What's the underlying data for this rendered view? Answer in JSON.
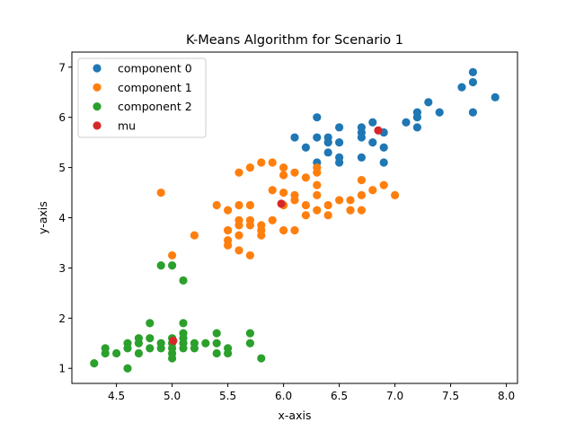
{
  "chart_data": {
    "type": "scatter",
    "title": "K-Means Algorithm for Scenario 1",
    "xlabel": "x-axis",
    "ylabel": "y-axis",
    "xlim": [
      4.1,
      8.1
    ],
    "ylim": [
      0.7,
      7.3
    ],
    "xticks": [
      4.5,
      5.0,
      5.5,
      6.0,
      6.5,
      7.0,
      7.5,
      8.0
    ],
    "yticks": [
      1,
      2,
      3,
      4,
      5,
      6,
      7
    ],
    "legend_position": "top-left",
    "grid": false,
    "series": [
      {
        "name": "component 0",
        "color": "#1f77b4",
        "points": [
          [
            6.1,
            5.6
          ],
          [
            6.2,
            5.4
          ],
          [
            6.3,
            5.6
          ],
          [
            6.3,
            6.0
          ],
          [
            6.3,
            5.1
          ],
          [
            6.4,
            5.6
          ],
          [
            6.4,
            5.5
          ],
          [
            6.4,
            5.3
          ],
          [
            6.5,
            5.8
          ],
          [
            6.5,
            5.5
          ],
          [
            6.5,
            5.2
          ],
          [
            6.5,
            5.1
          ],
          [
            6.7,
            5.8
          ],
          [
            6.7,
            5.7
          ],
          [
            6.7,
            5.6
          ],
          [
            6.7,
            5.2
          ],
          [
            6.8,
            5.9
          ],
          [
            6.8,
            5.5
          ],
          [
            6.9,
            5.7
          ],
          [
            6.9,
            5.4
          ],
          [
            6.9,
            5.1
          ],
          [
            7.1,
            5.9
          ],
          [
            7.2,
            6.1
          ],
          [
            7.2,
            6.0
          ],
          [
            7.2,
            5.8
          ],
          [
            7.3,
            6.3
          ],
          [
            7.4,
            6.1
          ],
          [
            7.6,
            6.6
          ],
          [
            7.7,
            6.9
          ],
          [
            7.7,
            6.7
          ],
          [
            7.7,
            6.1
          ],
          [
            7.9,
            6.4
          ]
        ]
      },
      {
        "name": "component 1",
        "color": "#ff7f0e",
        "points": [
          [
            4.9,
            4.5
          ],
          [
            5.0,
            3.25
          ],
          [
            5.2,
            3.65
          ],
          [
            5.4,
            4.25
          ],
          [
            5.5,
            4.15
          ],
          [
            5.5,
            3.75
          ],
          [
            5.5,
            3.55
          ],
          [
            5.5,
            3.45
          ],
          [
            5.6,
            4.9
          ],
          [
            5.6,
            4.25
          ],
          [
            5.6,
            3.95
          ],
          [
            5.6,
            3.85
          ],
          [
            5.6,
            3.65
          ],
          [
            5.6,
            3.35
          ],
          [
            5.7,
            5.0
          ],
          [
            5.7,
            4.25
          ],
          [
            5.7,
            3.95
          ],
          [
            5.7,
            3.85
          ],
          [
            5.7,
            3.25
          ],
          [
            5.8,
            5.1
          ],
          [
            5.8,
            3.85
          ],
          [
            5.8,
            3.75
          ],
          [
            5.8,
            3.65
          ],
          [
            5.9,
            5.1
          ],
          [
            5.9,
            4.55
          ],
          [
            5.9,
            3.95
          ],
          [
            6.0,
            5.0
          ],
          [
            6.0,
            4.85
          ],
          [
            6.0,
            4.5
          ],
          [
            6.0,
            4.25
          ],
          [
            6.0,
            3.75
          ],
          [
            6.1,
            4.9
          ],
          [
            6.1,
            4.45
          ],
          [
            6.1,
            4.35
          ],
          [
            6.1,
            3.75
          ],
          [
            6.2,
            4.8
          ],
          [
            6.2,
            4.25
          ],
          [
            6.2,
            4.05
          ],
          [
            6.3,
            5.0
          ],
          [
            6.3,
            4.9
          ],
          [
            6.3,
            4.65
          ],
          [
            6.3,
            4.45
          ],
          [
            6.3,
            4.15
          ],
          [
            6.4,
            4.25
          ],
          [
            6.4,
            4.05
          ],
          [
            6.5,
            4.35
          ],
          [
            6.6,
            4.35
          ],
          [
            6.6,
            4.15
          ],
          [
            6.7,
            4.75
          ],
          [
            6.7,
            4.45
          ],
          [
            6.7,
            4.15
          ],
          [
            6.8,
            4.55
          ],
          [
            6.9,
            4.65
          ],
          [
            7.0,
            4.45
          ]
        ]
      },
      {
        "name": "component 2",
        "color": "#2ca02c",
        "points": [
          [
            4.3,
            1.1
          ],
          [
            4.4,
            1.4
          ],
          [
            4.4,
            1.3
          ],
          [
            4.5,
            1.3
          ],
          [
            4.6,
            1.5
          ],
          [
            4.6,
            1.4
          ],
          [
            4.6,
            1.0
          ],
          [
            4.7,
            1.6
          ],
          [
            4.7,
            1.5
          ],
          [
            4.7,
            1.3
          ],
          [
            4.8,
            1.9
          ],
          [
            4.8,
            1.6
          ],
          [
            4.8,
            1.4
          ],
          [
            4.9,
            1.5
          ],
          [
            4.9,
            1.4
          ],
          [
            4.9,
            3.05
          ],
          [
            5.0,
            3.05
          ],
          [
            5.0,
            1.6
          ],
          [
            5.0,
            1.5
          ],
          [
            5.0,
            1.4
          ],
          [
            5.0,
            1.3
          ],
          [
            5.0,
            1.2
          ],
          [
            5.1,
            2.75
          ],
          [
            5.1,
            1.9
          ],
          [
            5.1,
            1.7
          ],
          [
            5.1,
            1.6
          ],
          [
            5.1,
            1.5
          ],
          [
            5.1,
            1.4
          ],
          [
            5.2,
            1.5
          ],
          [
            5.2,
            1.4
          ],
          [
            5.3,
            1.5
          ],
          [
            5.4,
            1.7
          ],
          [
            5.4,
            1.5
          ],
          [
            5.4,
            1.3
          ],
          [
            5.5,
            1.4
          ],
          [
            5.5,
            1.3
          ],
          [
            5.7,
            1.7
          ],
          [
            5.7,
            1.5
          ],
          [
            5.8,
            1.2
          ]
        ]
      },
      {
        "name": "mu",
        "color": "#d62728",
        "points": [
          [
            6.85,
            5.74
          ],
          [
            5.98,
            4.28
          ],
          [
            5.01,
            1.55
          ]
        ]
      }
    ]
  }
}
